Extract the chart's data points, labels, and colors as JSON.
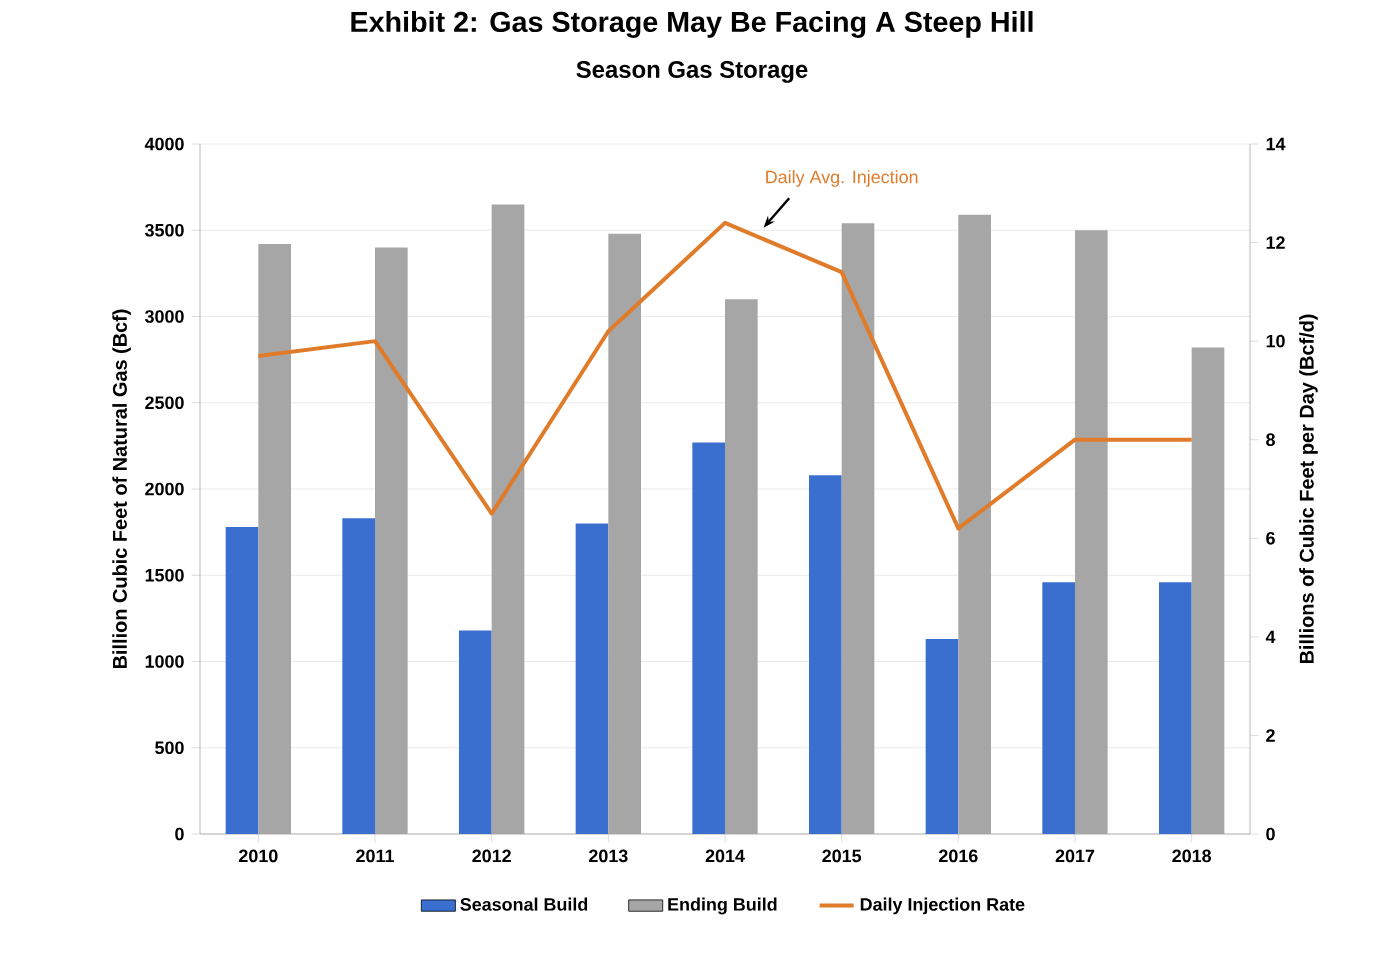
{
  "chart_data": {
    "type": "bar",
    "title": "Exhibit 2: Gas Storage May Be Facing A Steep Hill",
    "subtitle": "Season Gas Storage",
    "categories": [
      "2010",
      "2011",
      "2012",
      "2013",
      "2014",
      "2015",
      "2016",
      "2017",
      "2018"
    ],
    "series": [
      {
        "name": "Seasonal Build",
        "color": "#3a6fcf",
        "values": [
          1780,
          1830,
          1180,
          1800,
          2270,
          2080,
          1130,
          1460,
          1460
        ]
      },
      {
        "name": "Ending Build",
        "color": "#a6a6a6",
        "values": [
          3420,
          3400,
          3650,
          3480,
          3100,
          3540,
          3590,
          3500,
          2820
        ]
      },
      {
        "name": "Daily Injection Rate",
        "type": "line",
        "axis": "y2",
        "color": "#e07b2a",
        "values": [
          9.7,
          10.0,
          6.5,
          10.2,
          12.4,
          11.4,
          6.2,
          8.0,
          8.0
        ]
      }
    ],
    "ylabel": "Billion Cubic Feet of Natural Gas (Bcf)",
    "y2label": "Billions of Cubic Feet per Day (Bcf/d)",
    "ylim": [
      0,
      4000
    ],
    "yticks": [
      0,
      500,
      1000,
      1500,
      2000,
      2500,
      3000,
      3500,
      4000
    ],
    "y2lim": [
      0,
      14
    ],
    "y2ticks": [
      0,
      2,
      4,
      6,
      8,
      10,
      12,
      14
    ],
    "annotations": [
      "Daily Avg. Injection"
    ],
    "grid": "y",
    "legend": "bottom",
    "marker": "none",
    "line_style": "solid"
  }
}
